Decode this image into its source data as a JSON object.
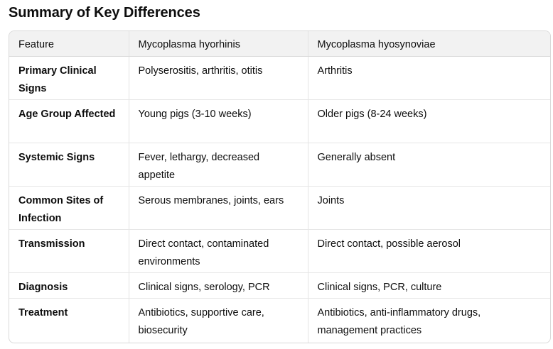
{
  "title": "Summary of Key Differences",
  "table": {
    "headers": [
      "Feature",
      "Mycoplasma hyorhinis",
      "Mycoplasma hyosynoviae"
    ],
    "rows": [
      [
        "Primary Clinical Signs",
        "Polyserositis, arthritis, otitis",
        "Arthritis"
      ],
      [
        "Age Group Affected",
        "Young pigs (3-10 weeks)",
        "Older pigs (8-24 weeks)"
      ],
      [
        "Systemic Signs",
        "Fever, lethargy, decreased appetite",
        "Generally absent"
      ],
      [
        "Common Sites of Infection",
        "Serous membranes, joints, ears",
        "Joints"
      ],
      [
        "Transmission",
        "Direct contact, contaminated environments",
        "Direct contact, possible aerosol"
      ],
      [
        "Diagnosis",
        "Clinical signs, serology, PCR",
        "Clinical signs, PCR, culture"
      ],
      [
        "Treatment",
        "Antibiotics, supportive care, biosecurity",
        "Antibiotics, anti-inflammatory drugs, management practices"
      ]
    ]
  }
}
